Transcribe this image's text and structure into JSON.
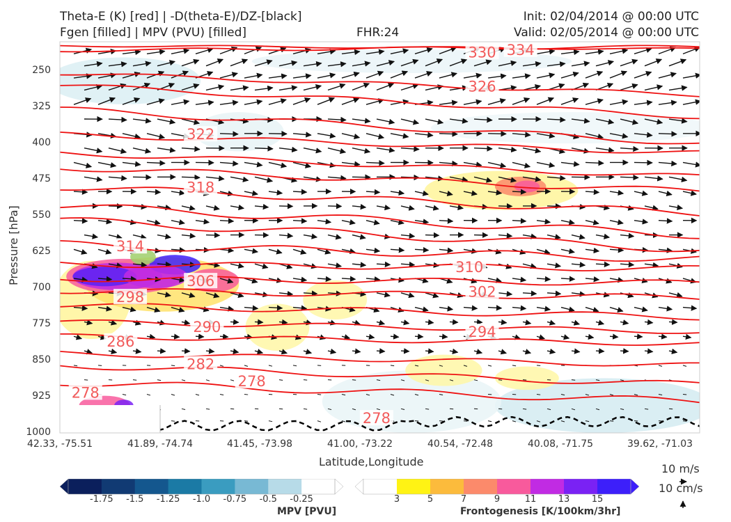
{
  "header": {
    "title_line1": "Theta-E (K) [red] | -D(theta-E)/DZ-[black]",
    "title_line2": "Fgen [filled] | MPV (PVU) [filled]",
    "fhr": "FHR:24",
    "init": "Init: 02/04/2014 @ 00:00 UTC",
    "valid": "Valid: 02/05/2014 @ 00:00 UTC"
  },
  "chart_data": {
    "type": "cross-section",
    "ylabel": "Pressure [hPa]",
    "xlabel": "Latitude,Longitude",
    "y_ticks": [
      "250",
      "325",
      "400",
      "475",
      "550",
      "625",
      "700",
      "775",
      "850",
      "925",
      "1000"
    ],
    "y_range": [
      190,
      1000
    ],
    "y_inverted": true,
    "x_ticks": [
      "42.33, -75.51",
      "41.89, -74.74",
      "41.45, -73.98",
      "41.00, -73.22",
      "40.54, -72.48",
      "40.08, -71.75",
      "39.62, -71.03"
    ],
    "theta_e_color": "#ee1111",
    "theta_e_contour_labels": [
      {
        "text": "334",
        "x_frac": 0.72,
        "p": 207
      },
      {
        "text": "330",
        "x_frac": 0.66,
        "p": 212
      },
      {
        "text": "326",
        "x_frac": 0.66,
        "p": 283
      },
      {
        "text": "322",
        "x_frac": 0.22,
        "p": 382
      },
      {
        "text": "318",
        "x_frac": 0.22,
        "p": 492
      },
      {
        "text": "314",
        "x_frac": 0.11,
        "p": 614
      },
      {
        "text": "310",
        "x_frac": 0.64,
        "p": 657
      },
      {
        "text": "306",
        "x_frac": 0.22,
        "p": 686
      },
      {
        "text": "302",
        "x_frac": 0.66,
        "p": 708
      },
      {
        "text": "298",
        "x_frac": 0.11,
        "p": 719
      },
      {
        "text": "294",
        "x_frac": 0.66,
        "p": 791
      },
      {
        "text": "290",
        "x_frac": 0.23,
        "p": 781
      },
      {
        "text": "286",
        "x_frac": 0.095,
        "p": 811
      },
      {
        "text": "282",
        "x_frac": 0.22,
        "p": 858
      },
      {
        "text": "278",
        "x_frac": 0.3,
        "p": 893
      },
      {
        "text": "278",
        "x_frac": 0.04,
        "p": 917
      },
      {
        "text": "278",
        "x_frac": 0.495,
        "p": 970
      }
    ],
    "wind_legend": {
      "speed": "10 m/s",
      "vertical": "10 cm/s"
    },
    "mpv_colorbar": {
      "title": "MPV [PVU]",
      "ticks": [
        "-1.75",
        "-1.5",
        "-1.25",
        "-1.0",
        "-0.75",
        "-0.5",
        "-0.25"
      ],
      "colors": [
        "#0b1f5c",
        "#113a73",
        "#14578e",
        "#1b7aa5",
        "#3a9cc0",
        "#78b9d4",
        "#b7dbe8",
        "#ffffff"
      ]
    },
    "fgen_colorbar": {
      "title": "Frontogenesis [K/100km/3hr]",
      "ticks": [
        "3",
        "5",
        "7",
        "9",
        "11",
        "13",
        "15"
      ],
      "colors": [
        "#ffffff",
        "#fff314",
        "#fcbb3c",
        "#fc8a6b",
        "#f85a9c",
        "#c12be3",
        "#7a22f4",
        "#3d1ffa"
      ]
    }
  }
}
